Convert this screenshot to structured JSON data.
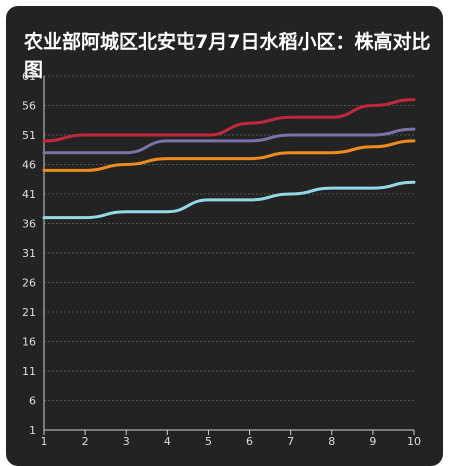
{
  "chart_data": {
    "type": "line",
    "title": "农业部阿城区北安屯7月7日水稻小区：株高对比图",
    "x": [
      "1",
      "2",
      "3",
      "4",
      "5",
      "6",
      "7",
      "8",
      "9",
      "10"
    ],
    "ylim": [
      1,
      61
    ],
    "yticks": [
      "1",
      "6",
      "11",
      "16",
      "21",
      "26",
      "31",
      "36",
      "41",
      "46",
      "51",
      "56",
      "61"
    ],
    "grid": true,
    "series": [
      {
        "color": "#c0283c",
        "values": [
          50,
          51,
          51,
          51,
          51,
          53,
          54,
          54,
          56,
          57
        ]
      },
      {
        "color": "#7a72a8",
        "values": [
          48,
          48,
          48,
          50,
          50,
          50,
          51,
          51,
          51,
          52
        ]
      },
      {
        "color": "#f08c1e",
        "values": [
          45,
          45,
          46,
          47,
          47,
          47,
          48,
          48,
          49,
          50
        ]
      },
      {
        "color": "#94d8e8",
        "values": [
          37,
          37,
          38,
          38,
          40,
          40,
          41,
          42,
          42,
          43
        ]
      }
    ]
  }
}
